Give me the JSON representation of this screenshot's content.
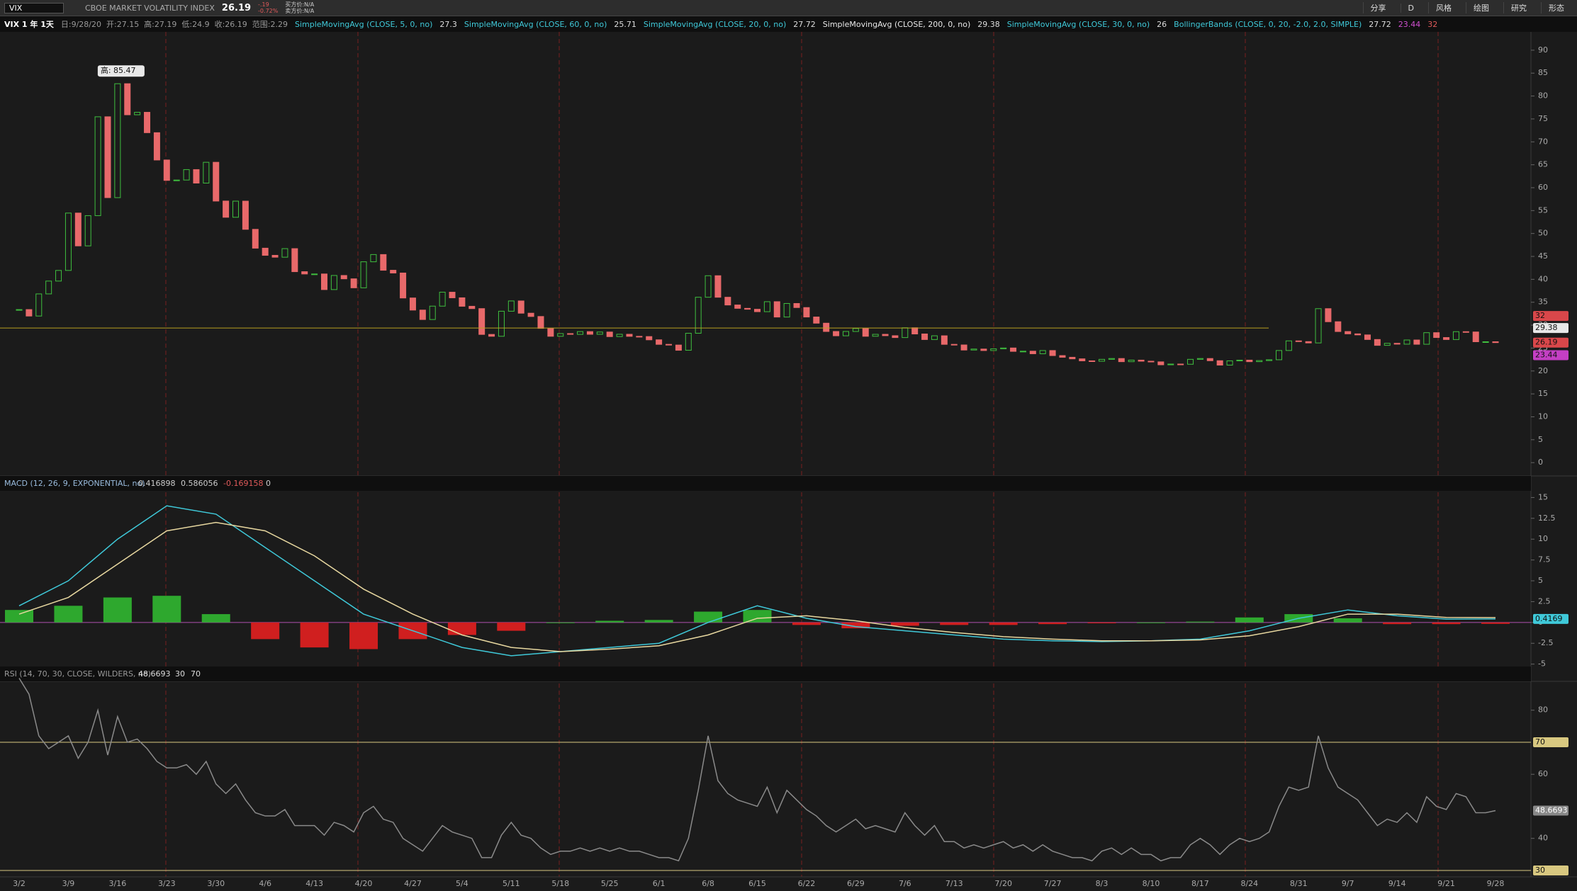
{
  "toolbar": {
    "symbol": "VIX",
    "name": "CBOE MARKET VOLATILITY INDEX",
    "last": "26.19",
    "change": "-.19",
    "change_pct": "-0.72%",
    "bid": "买方价:N/A",
    "ask": "卖方价:N/A",
    "buttons": [
      "分享",
      "风格",
      "绘图",
      "研究",
      "形态"
    ],
    "period": "D"
  },
  "info_bar": {
    "label": "VIX 1 年 1天",
    "ohlc": "日:9/28/20  开:27.15  高:27.19  低:24.9  收:26.19  范围:2.29",
    "studies": [
      {
        "name": "SimpleMovingAvg (CLOSE, 5, 0, no)",
        "values": [
          "27.3"
        ],
        "color": "#3fc9d9"
      },
      {
        "name": "SimpleMovingAvg (CLOSE, 60, 0, no)",
        "values": [
          "25.71"
        ],
        "color": "#3fc9d9"
      },
      {
        "name": "SimpleMovingAvg (CLOSE, 20, 0, no)",
        "values": [
          "27.72"
        ],
        "color": "#3fc9d9"
      },
      {
        "name": "SimpleMovingAvg (CLOSE, 200, 0, no)",
        "values": [
          "29.38"
        ],
        "color": "#e8e8e8"
      },
      {
        "name": "SimpleMovingAvg (CLOSE, 30, 0, no)",
        "values": [
          "26"
        ],
        "color": "#3fc9d9"
      },
      {
        "name": "BollingerBands (CLOSE, 0, 20, -2.0, 2.0, SIMPLE)",
        "values": [
          "27.72",
          "23.44",
          "32"
        ],
        "color": "#3fc9d9"
      }
    ]
  },
  "price_panel": {
    "ylim": [
      -2.6,
      94
    ],
    "yticks": [
      0,
      5,
      10,
      15,
      20,
      25,
      30,
      35,
      40,
      45,
      50,
      55,
      60,
      65,
      70,
      75,
      80,
      85,
      90
    ],
    "closes": [
      33.4,
      31.99,
      36.82,
      39.62,
      41.94,
      54.46,
      47.3,
      53.9,
      75.47,
      57.83,
      82.69,
      75.91,
      76.45,
      72,
      66.04,
      61.59,
      61.67,
      63.95,
      61,
      65.54,
      57.08,
      53.54,
      57.06,
      50.91,
      46.8,
      45.24,
      44.83,
      46.7,
      41.67,
      41.17,
      41.17,
      37.76,
      40.84,
      40.11,
      38.15,
      43.83,
      45.41,
      41.98,
      41.38,
      35.93,
      33.29,
      31.23,
      34.15,
      37.19,
      35.97,
      34.12,
      33.61,
      27.98,
      27.57,
      33.04,
      35.28,
      32.61,
      31.89,
      29.3,
      27.57,
      28.16,
      27.99,
      28.59,
      28.01,
      28.5,
      27.5,
      28.01,
      27.56,
      27.51,
      26.8,
      25.81,
      25.66,
      24.52,
      28.23,
      36.09,
      40.79,
      36.09,
      34.4,
      33.67,
      33.47,
      32.94,
      35.12,
      31.77,
      34.73,
      33.84,
      31.78,
      30.43,
      28.62,
      27.68,
      28.62,
      29.26,
      27.57,
      28,
      27.7,
      27.29,
      29.43,
      28.08,
      26.86,
      27.68,
      25.81,
      25.68,
      24.57,
      24.79,
      24.46,
      24.84,
      25.02,
      24.28,
      24.32,
      23.76,
      24.46,
      23.36,
      22.99,
      22.65,
      22.21,
      22.13,
      22.54,
      22.72,
      22.03,
      22.37,
      22.13,
      21.99,
      21.35,
      21.51,
      21.47,
      22.54,
      22.72,
      22.24,
      21.28,
      22.21,
      22.37,
      22.03,
      22.27,
      22.45,
      24.47,
      26.57,
      26.41,
      26.12,
      33.6,
      30.75,
      28.61,
      28.1,
      27.87,
      26.87,
      25.59,
      26.04,
      25.85,
      26.76,
      25.83,
      28.36,
      27.3,
      26.86,
      28.58,
      28.51,
      26.38,
      26.38,
      26.19
    ],
    "high_label": {
      "value": 85.47,
      "label": "高: 85.47"
    },
    "price_tags": [
      {
        "value": 32,
        "label": "32",
        "color": "#d9474a"
      },
      {
        "value": 29.38,
        "label": "29.38",
        "color": "#e8e8e8"
      },
      {
        "value": 26.19,
        "label": "26.19",
        "color": "#d9474a"
      },
      {
        "value": 23.44,
        "label": "23.44",
        "color": "#c43fc4"
      }
    ]
  },
  "macd_panel": {
    "label": "MACD (12, 26, 9, EXPONENTIAL, no)",
    "readouts": [
      "0.416898",
      "0.586056",
      "-0.169158",
      "0"
    ],
    "ylim": [
      -5.2,
      15.8
    ],
    "yticks": [
      -5,
      -2.5,
      0,
      2.5,
      5,
      7.5,
      10,
      12.5,
      15
    ],
    "macd": [
      2,
      5,
      10,
      14,
      13,
      9,
      5,
      1,
      -1,
      -3,
      -4,
      -3.5,
      -3,
      -2.5,
      0,
      2,
      0.5,
      -0.5,
      -1,
      -1.5,
      -2,
      -2.2,
      -2.3,
      -2.2,
      -2,
      -1,
      0.5,
      1.5,
      0.8,
      0.4,
      0.42
    ],
    "signal": [
      1,
      3,
      7,
      11,
      12,
      11,
      8,
      4,
      1,
      -1.5,
      -3,
      -3.5,
      -3.2,
      -2.8,
      -1.5,
      0.5,
      0.8,
      0.2,
      -0.6,
      -1.2,
      -1.7,
      -2,
      -2.2,
      -2.2,
      -2.1,
      -1.6,
      -0.5,
      1,
      1,
      0.6,
      0.586
    ],
    "histogram": [
      1.5,
      2,
      3,
      3.2,
      1,
      -2,
      -3,
      -3.2,
      -2,
      -1.5,
      -1,
      0,
      0.2,
      0.3,
      1.3,
      1.5,
      -0.3,
      -0.7,
      -0.4,
      -0.3,
      -0.3,
      -0.2,
      -0.1,
      0,
      0.1,
      0.6,
      1,
      0.5,
      -0.2,
      -0.2,
      -0.17
    ],
    "tag": {
      "value": 0.4169,
      "label": "0.4169"
    }
  },
  "rsi_panel": {
    "label": "RSI (14, 70, 30, CLOSE, WILDERS, no)",
    "readouts": [
      "48.6693",
      "30",
      "70"
    ],
    "ylim": [
      28,
      89
    ],
    "yticks": [
      40,
      60,
      80
    ],
    "values": [
      90,
      85,
      72,
      68,
      70,
      72,
      65,
      70,
      80,
      66,
      78,
      70,
      71,
      68,
      64,
      62,
      62,
      63,
      60,
      64,
      57,
      54,
      57,
      52,
      48,
      47,
      47,
      49,
      44,
      44,
      44,
      41,
      45,
      44,
      42,
      48,
      50,
      46,
      45,
      40,
      38,
      36,
      40,
      44,
      42,
      41,
      40,
      34,
      34,
      41,
      45,
      41,
      40,
      37,
      35,
      36,
      36,
      37,
      36,
      37,
      36,
      37,
      36,
      36,
      35,
      34,
      34,
      33,
      40,
      55,
      72,
      58,
      54,
      52,
      51,
      50,
      56,
      48,
      55,
      52,
      49,
      47,
      44,
      42,
      44,
      46,
      43,
      44,
      43,
      42,
      48,
      44,
      41,
      44,
      39,
      39,
      37,
      38,
      37,
      38,
      39,
      37,
      38,
      36,
      38,
      36,
      35,
      34,
      34,
      33,
      36,
      37,
      35,
      37,
      35,
      35,
      33,
      34,
      34,
      38,
      40,
      38,
      35,
      38,
      40,
      39,
      40,
      42,
      50,
      56,
      55,
      56,
      72,
      62,
      56,
      54,
      52,
      48,
      44,
      46,
      45,
      48,
      45,
      53,
      50,
      49,
      54,
      53,
      48,
      48,
      48.6693
    ],
    "levels": [
      {
        "value": 70,
        "label": "70"
      },
      {
        "value": 30,
        "label": "30"
      }
    ],
    "tag": {
      "value": 48.6693,
      "label": "48.6693"
    }
  },
  "x_labels": [
    "3/2",
    "3/9",
    "3/16",
    "3/23",
    "3/30",
    "4/6",
    "4/13",
    "4/20",
    "4/27",
    "5/4",
    "5/11",
    "5/18",
    "5/25",
    "6/1",
    "6/8",
    "6/15",
    "6/22",
    "6/29",
    "7/6",
    "7/13",
    "7/20",
    "7/27",
    "8/3",
    "8/10",
    "8/17",
    "8/24",
    "8/31",
    "9/7",
    "9/14",
    "9/21",
    "9/28"
  ]
}
